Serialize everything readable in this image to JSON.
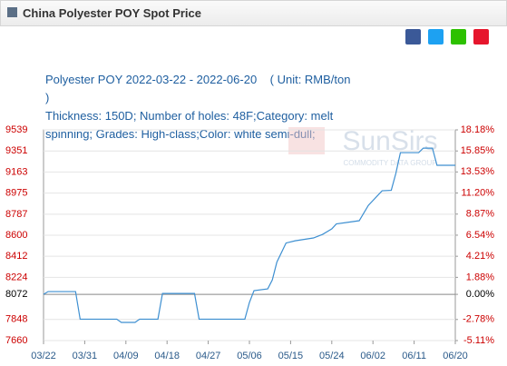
{
  "header": {
    "title": "China Polyester POY Spot Price"
  },
  "chart_data": {
    "type": "line",
    "title": "Polyester POY 2022-03-22 - 2022-06-20    ( Unit: RMB/ton )",
    "subtitle": "Thickness: 150D; Number of holes: 48F;Category: melt spinning; Grades: High-class;Color: white semi-dull;",
    "watermark": "SunSirs",
    "watermark_subtitle": "COMMODITY DATA GROUP",
    "x": [
      "03/22",
      "03/23",
      "03/29",
      "03/30",
      "04/07",
      "04/08",
      "04/11",
      "04/12",
      "04/16",
      "04/17",
      "04/24",
      "04/25",
      "05/05",
      "05/06",
      "05/07",
      "05/10",
      "05/11",
      "05/12",
      "05/14",
      "05/16",
      "05/20",
      "05/22",
      "05/24",
      "05/25",
      "05/30",
      "06/01",
      "06/04",
      "06/06",
      "06/07",
      "06/08",
      "06/12",
      "06/13",
      "06/15",
      "06/16",
      "06/20"
    ],
    "series": [
      {
        "name": "Polyester POY",
        "color": "#3d8fd1",
        "values": [
          8072,
          8097,
          8097,
          7851,
          7851,
          7822,
          7822,
          7851,
          7851,
          8080,
          8080,
          7851,
          7851,
          8000,
          8105,
          8121,
          8200,
          8360,
          8530,
          8550,
          8575,
          8607,
          8656,
          8700,
          8729,
          8866,
          8996,
          9000,
          9150,
          9336,
          9336,
          9376,
          9376,
          9223,
          9223
        ]
      }
    ],
    "xticks": [
      "03/22",
      "03/31",
      "04/09",
      "04/18",
      "04/27",
      "05/06",
      "05/15",
      "05/24",
      "06/02",
      "06/11",
      "06/20"
    ],
    "ylim": [
      7660,
      9539
    ],
    "yticks": [
      7660,
      7848,
      8072,
      8224,
      8412,
      8600,
      8787,
      8975,
      9163,
      9351,
      9539
    ],
    "y2lim": [
      -5.11,
      18.18
    ],
    "y2ticks": [
      {
        "value": -5.11,
        "label": "-5.11%"
      },
      {
        "value": -2.78,
        "label": "-2.78%"
      },
      {
        "value": 0,
        "label": "0.00%"
      },
      {
        "value": 1.88,
        "label": "1.88%"
      },
      {
        "value": 4.21,
        "label": "4.21%"
      },
      {
        "value": 6.54,
        "label": "6.54%"
      },
      {
        "value": 8.87,
        "label": "8.87%"
      },
      {
        "value": 11.2,
        "label": "11.20%"
      },
      {
        "value": 13.53,
        "label": "13.53%"
      },
      {
        "value": 15.85,
        "label": "15.85%"
      },
      {
        "value": 18.18,
        "label": "18.18%"
      }
    ],
    "grid": true
  }
}
